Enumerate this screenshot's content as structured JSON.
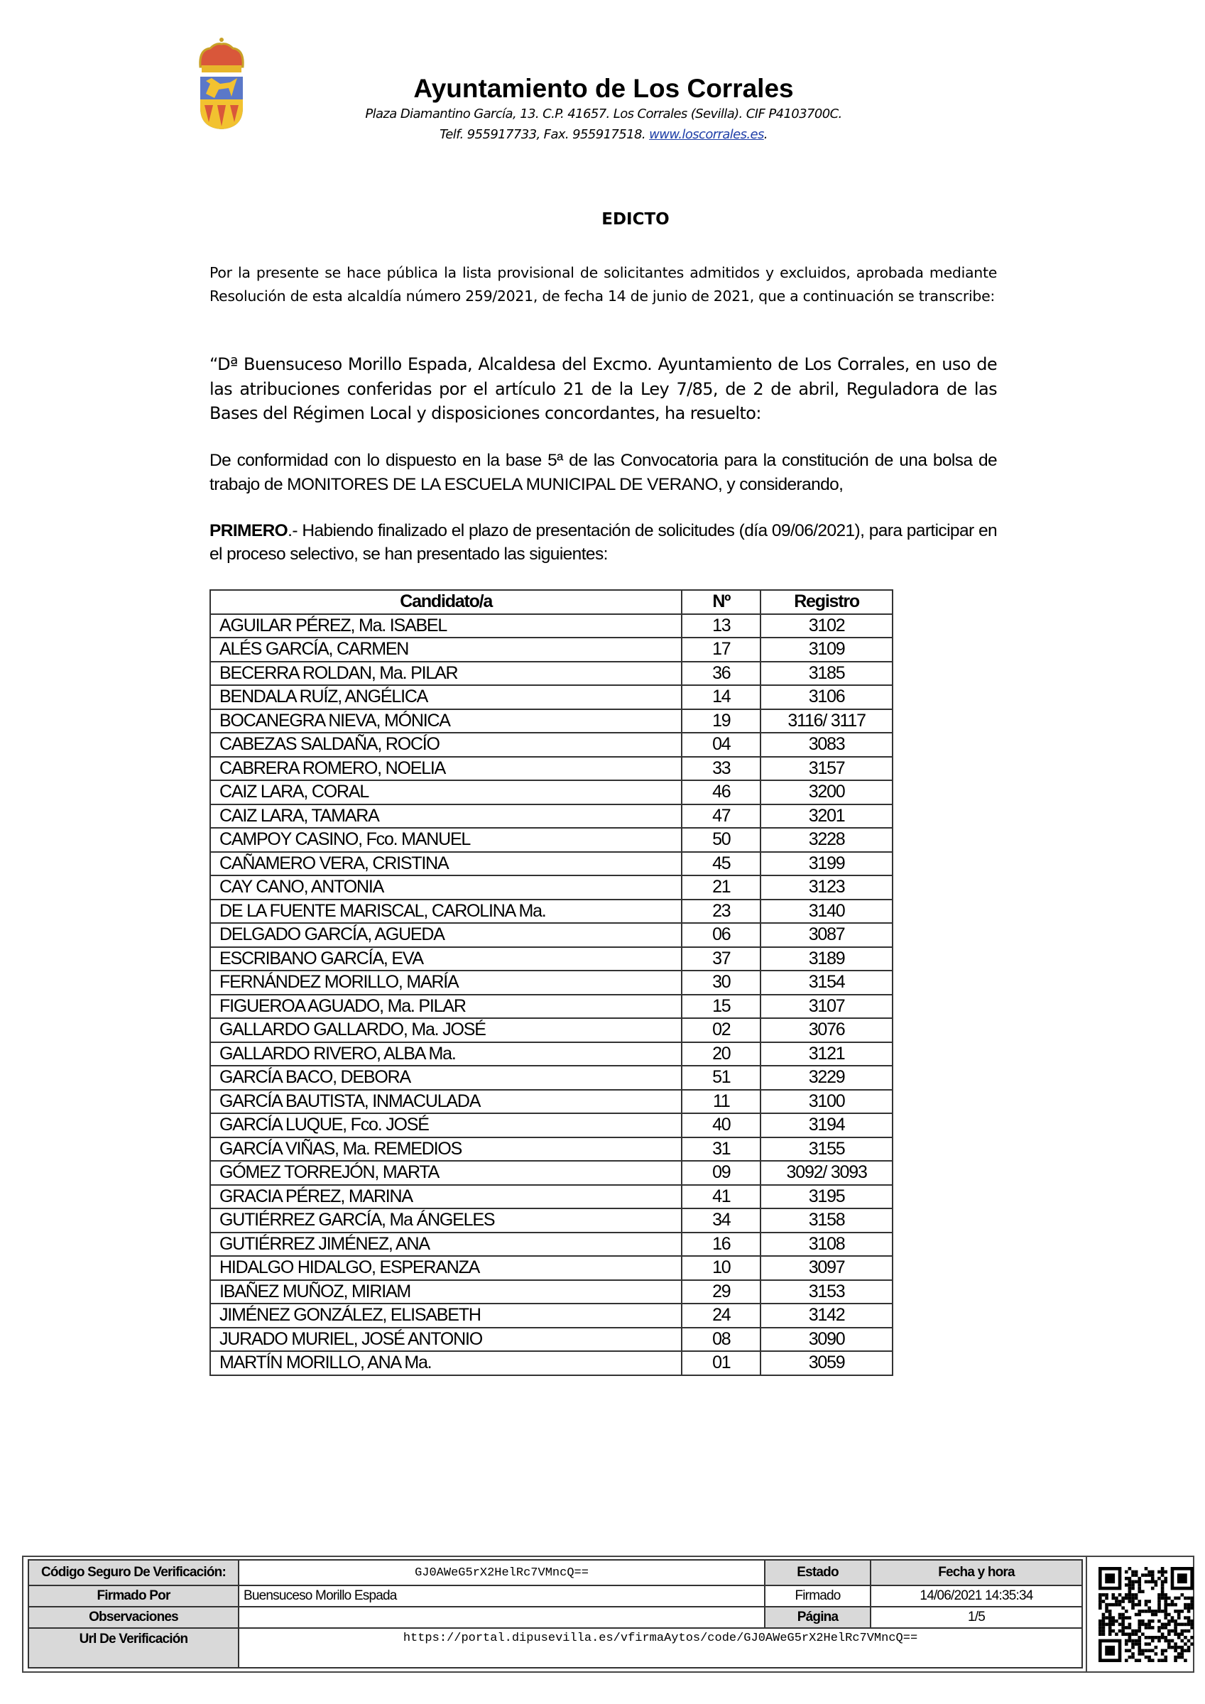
{
  "header": {
    "org_name": "Ayuntamiento de Los Corrales",
    "address_line": "Plaza Diamantino García, 13. C.P. 41657. Los Corrales (Sevilla). CIF P4103700C.",
    "contact_prefix": "Telf. 955917733, Fax. 955917518. ",
    "website": "www.loscorrales.es",
    "contact_suffix": "."
  },
  "document": {
    "title": "EDICTO",
    "paragraph1": "Por la presente se hace pública la lista provisional de solicitantes admitidos y excluidos, aprobada mediante Resolución de esta alcaldía número 259/2021, de fecha 14 de junio de 2021, que a continuación se transcribe:",
    "paragraph2": "“Dª Buensuceso Morillo Espada, Alcaldesa del Excmo. Ayuntamiento de Los Corrales, en uso de las atribuciones conferidas por el artículo 21 de la Ley 7/85, de 2 de abril, Reguladora de las Bases del Régimen Local y disposiciones concordantes, ha resuelto:",
    "paragraph3": "De conformidad con lo dispuesto en la base 5ª de las Convocatoria para la constitución de una bolsa de trabajo de MONITORES DE LA ESCUELA MUNICIPAL DE VERANO, y considerando,",
    "paragraph4_bold": "PRIMERO",
    "paragraph4": ".- Habiendo finalizado el plazo de presentación de solicitudes (día 09/06/2021), para participar en el proceso selectivo, se han presentado las siguientes:"
  },
  "table": {
    "headers": [
      "Candidato/a",
      "Nº",
      "Registro"
    ],
    "rows": [
      [
        "AGUILAR PÉREZ, Ma. ISABEL",
        "13",
        "3102"
      ],
      [
        "ALÉS GARCÍA, CARMEN",
        "17",
        "3109"
      ],
      [
        "BECERRA ROLDAN, Ma. PILAR",
        "36",
        "3185"
      ],
      [
        "BENDALA RUÍZ, ANGÉLICA",
        "14",
        "3106"
      ],
      [
        "BOCANEGRA NIEVA, MÓNICA",
        "19",
        "3116/ 3117"
      ],
      [
        "CABEZAS SALDAÑA, ROCÍO",
        "04",
        "3083"
      ],
      [
        "CABRERA ROMERO, NOELIA",
        "33",
        "3157"
      ],
      [
        "CAIZ LARA, CORAL",
        "46",
        "3200"
      ],
      [
        "CAIZ LARA, TAMARA",
        "47",
        "3201"
      ],
      [
        "CAMPOY CASINO, Fco. MANUEL",
        "50",
        "3228"
      ],
      [
        "CAÑAMERO VERA, CRISTINA",
        "45",
        "3199"
      ],
      [
        "CAY CANO, ANTONIA",
        "21",
        "3123"
      ],
      [
        "DE LA FUENTE MARISCAL, CAROLINA Ma.",
        "23",
        "3140"
      ],
      [
        "DELGADO GARCÍA, AGUEDA",
        "06",
        "3087"
      ],
      [
        "ESCRIBANO GARCÍA, EVA",
        "37",
        "3189"
      ],
      [
        "FERNÁNDEZ MORILLO, MARÍA",
        "30",
        "3154"
      ],
      [
        "FIGUEROA AGUADO, Ma. PILAR",
        "15",
        "3107"
      ],
      [
        "GALLARDO GALLARDO, Ma. JOSÉ",
        "02",
        "3076"
      ],
      [
        "GALLARDO RIVERO, ALBA Ma.",
        "20",
        "3121"
      ],
      [
        "GARCÍA BACO, DEBORA",
        "51",
        "3229"
      ],
      [
        "GARCÍA BAUTISTA, INMACULADA",
        "11",
        "3100"
      ],
      [
        "GARCÍA LUQUE, Fco. JOSÉ",
        "40",
        "3194"
      ],
      [
        "GARCÍA VIÑAS, Ma. REMEDIOS",
        "31",
        "3155"
      ],
      [
        "GÓMEZ TORREJÓN, MARTA",
        "09",
        "3092/ 3093"
      ],
      [
        "GRACIA PÉREZ, MARINA",
        "41",
        "3195"
      ],
      [
        "GUTIÉRREZ GARCÍA, Ma ÁNGELES",
        "34",
        "3158"
      ],
      [
        "GUTIÉRREZ JIMÉNEZ, ANA",
        "16",
        "3108"
      ],
      [
        "HIDALGO HIDALGO, ESPERANZA",
        "10",
        "3097"
      ],
      [
        "IBAÑEZ MUÑOZ, MIRIAM",
        "29",
        "3153"
      ],
      [
        "JIMÉNEZ GONZÁLEZ, ELISABETH",
        "24",
        "3142"
      ],
      [
        "JURADO MURIEL, JOSÉ ANTONIO",
        "08",
        "3090"
      ],
      [
        "MARTÍN MORILLO, ANA Ma.",
        "01",
        "3059"
      ]
    ]
  },
  "footer": {
    "csv_label": "Código Seguro De Verificación:",
    "csv_value": "GJ0AWeG5rX2HelRc7VMncQ==",
    "estado_label": "Estado",
    "fecha_label": "Fecha y hora",
    "firmado_por_label": "Firmado Por",
    "firmado_por_value": "Buensuceso Morillo Espada",
    "estado_value": "Firmado",
    "fecha_value": "14/06/2021 14:35:34",
    "observaciones_label": "Observaciones",
    "observaciones_value": "",
    "pagina_label": "Página",
    "pagina_value": "1/5",
    "url_label": "Url De Verificación",
    "url_value": "https://portal.dipusevilla.es/vfirmaAytos/code/GJ0AWeG5rX2HelRc7VMncQ=="
  },
  "colors": {
    "link": "#1f3fa8",
    "footer_label_bg": "#d9d9d9",
    "crest_blue": "#5b78c8",
    "crest_gold": "#f2c230",
    "crest_red": "#d9573a"
  }
}
